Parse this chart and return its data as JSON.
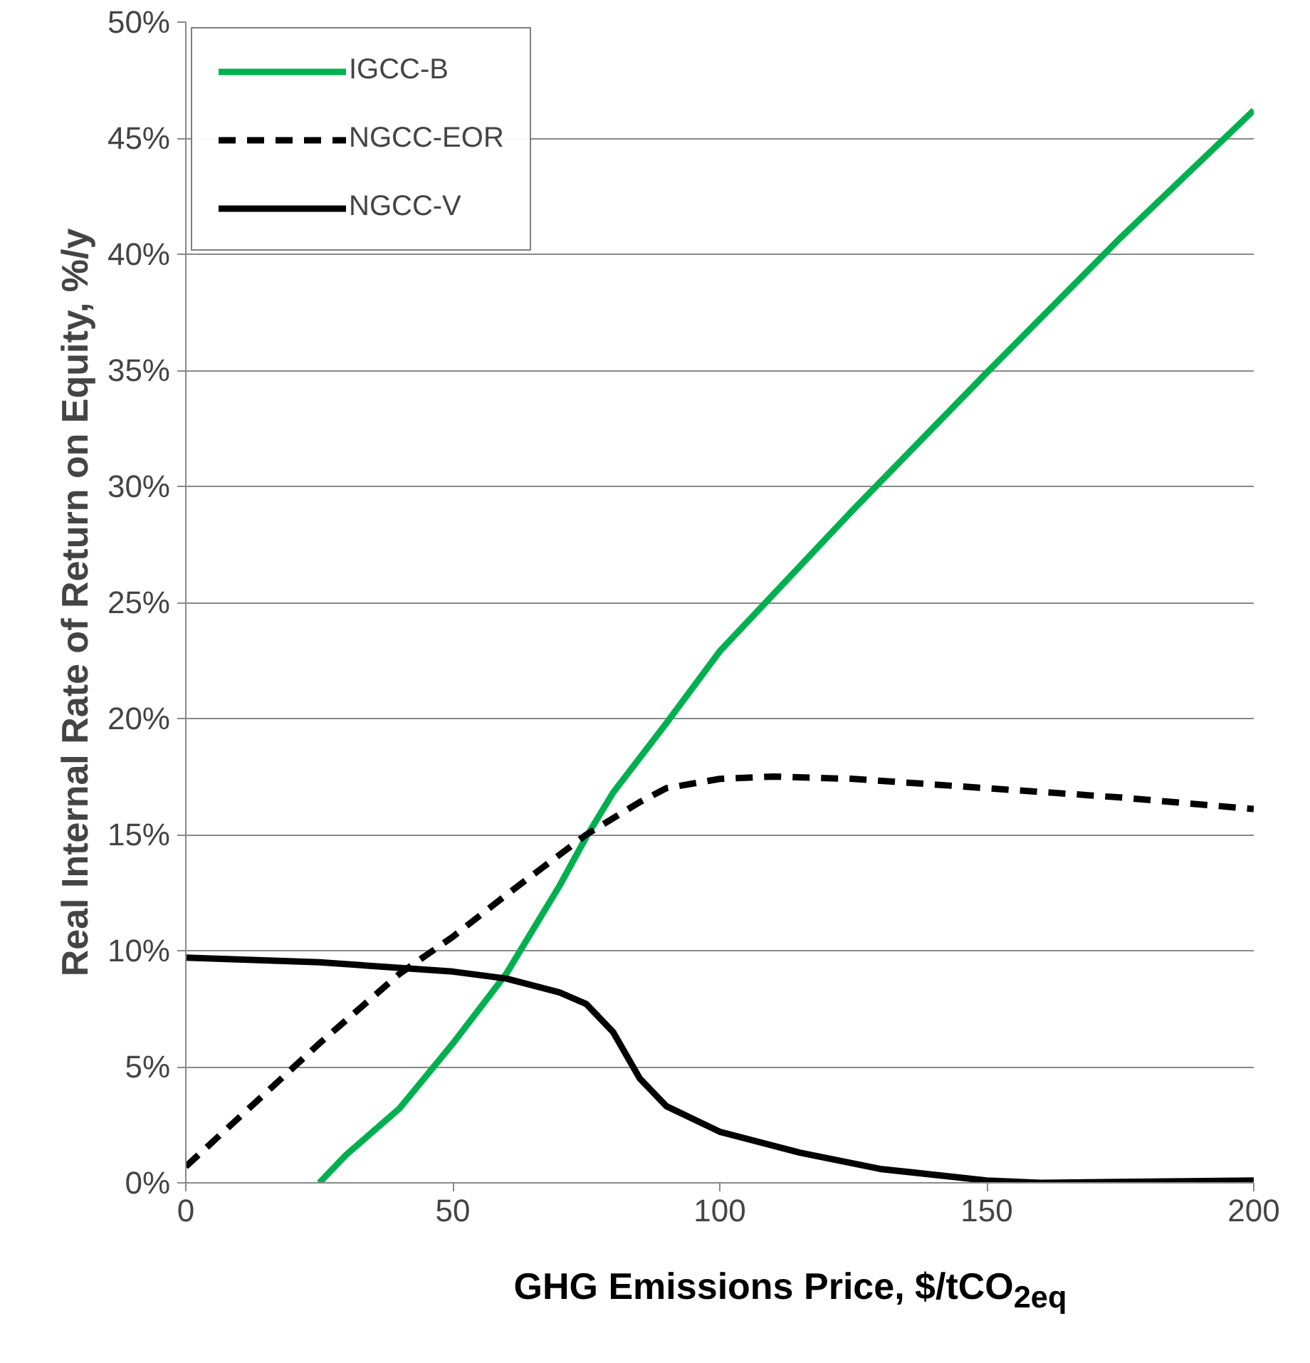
{
  "chart_data": {
    "type": "line",
    "xlabel": "GHG Emissions Price, $/tCO$_{2eq}$",
    "ylabel": "Real Internal Rate of Return on Equity, %/y",
    "xlim": [
      0,
      200
    ],
    "xticks": [
      0,
      50,
      100,
      150,
      200
    ],
    "ylim": [
      0,
      50
    ],
    "yticks": [
      {
        "value": 0,
        "label": "0%"
      },
      {
        "value": 5,
        "label": "5%"
      },
      {
        "value": 10,
        "label": "10%"
      },
      {
        "value": 15,
        "label": "15%"
      },
      {
        "value": 20,
        "label": "20%"
      },
      {
        "value": 25,
        "label": "25%"
      },
      {
        "value": 30,
        "label": "30%"
      },
      {
        "value": 35,
        "label": "35%"
      },
      {
        "value": 40,
        "label": "40%"
      },
      {
        "value": 45,
        "label": "45%"
      },
      {
        "value": 50,
        "label": "50%"
      }
    ],
    "grid": "y",
    "legend": "top left",
    "series": [
      {
        "name": "IGCC-B",
        "color": "#00b050",
        "line_style": "solid",
        "x": [
          25,
          30,
          40,
          50,
          60,
          70,
          75,
          80,
          90,
          100,
          125,
          150,
          175,
          200
        ],
        "values": [
          0,
          1.2,
          3.2,
          6.0,
          9.0,
          12.8,
          14.9,
          16.8,
          19.8,
          22.9,
          29.0,
          34.9,
          40.7,
          46.2
        ]
      },
      {
        "name": "NGCC-EOR",
        "color": "#000000",
        "line_style": "dashed",
        "x": [
          0,
          25,
          40,
          50,
          60,
          75,
          85,
          90,
          100,
          110,
          125,
          150,
          175,
          200
        ],
        "values": [
          0.7,
          6.0,
          9.0,
          10.6,
          12.4,
          15.0,
          16.4,
          17.0,
          17.4,
          17.5,
          17.4,
          17.0,
          16.6,
          16.1
        ]
      },
      {
        "name": "NGCC-V",
        "color": "#000000",
        "line_style": "solid",
        "x": [
          0,
          25,
          50,
          60,
          70,
          75,
          80,
          85,
          90,
          100,
          115,
          130,
          150,
          160,
          200
        ],
        "values": [
          9.7,
          9.5,
          9.1,
          8.8,
          8.2,
          7.7,
          6.5,
          4.5,
          3.3,
          2.2,
          1.3,
          0.6,
          0.1,
          0,
          0.1
        ]
      }
    ]
  }
}
